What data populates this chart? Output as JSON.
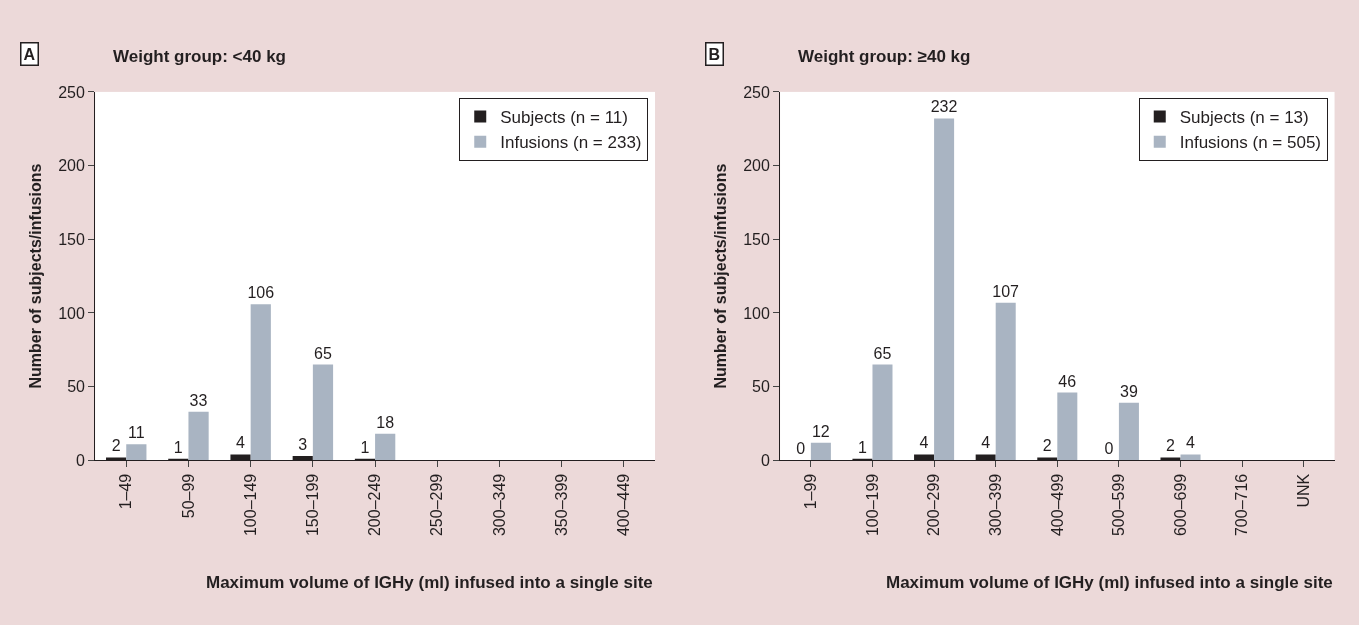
{
  "chart_data": [
    {
      "type": "bar",
      "title": "Weight group: <40 kg",
      "xlabel": "Maximum volume of IGHy (ml) infused into a single site",
      "ylabel": "Number of subjects/infusions",
      "annotations": [
        "A"
      ],
      "categories": [
        "1–49",
        "50–99",
        "100–149",
        "150–199",
        "200–249",
        "250–299",
        "300–349",
        "350–399",
        "400–449"
      ],
      "series": [
        {
          "name": "Subjects (n = 11)",
          "color": "#231f20",
          "values": [
            2,
            1,
            4,
            3,
            1,
            null,
            null,
            null,
            null
          ]
        },
        {
          "name": "Infusions (n = 233)",
          "color": "#a9b4c2",
          "values": [
            11,
            33,
            106,
            65,
            18,
            null,
            null,
            null,
            null
          ]
        }
      ],
      "ylim": [
        0,
        250
      ],
      "yticks": [
        0,
        50,
        100,
        150,
        200,
        250
      ],
      "data_labels": true,
      "legend": "top right"
    },
    {
      "type": "bar",
      "title": "Weight group: ≥40 kg",
      "xlabel": "Maximum volume of IGHy (ml) infused into a single site",
      "ylabel": "Number of subjects/infusions",
      "annotations": [
        "B"
      ],
      "categories": [
        "1–99",
        "100–199",
        "200–299",
        "300–399",
        "400–499",
        "500–599",
        "600–699",
        "700–716",
        "UNK"
      ],
      "series": [
        {
          "name": "Subjects (n = 13)",
          "color": "#231f20",
          "values": [
            0,
            1,
            4,
            4,
            2,
            0,
            2,
            null,
            null
          ]
        },
        {
          "name": "Infusions (n = 505)",
          "color": "#a9b4c2",
          "values": [
            12,
            65,
            232,
            107,
            46,
            39,
            4,
            null,
            null
          ]
        }
      ],
      "ylim": [
        0,
        250
      ],
      "yticks": [
        0,
        50,
        100,
        150,
        200,
        250
      ],
      "data_labels": true,
      "legend": "top right"
    }
  ]
}
